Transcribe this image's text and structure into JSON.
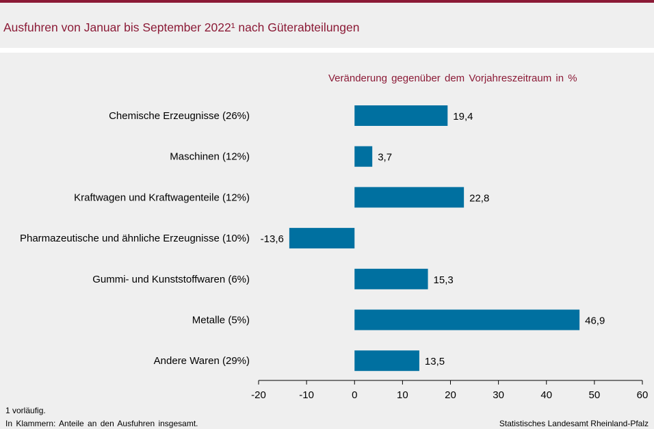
{
  "header": {
    "title": "Ausfuhren von Januar bis September 2022¹ nach Güterabteilungen"
  },
  "colors": {
    "accent": "#8b1a36",
    "bar": "#0070a0",
    "background": "#efefef"
  },
  "chart_data": {
    "type": "bar",
    "orientation": "horizontal",
    "subtitle": "Veränderung gegenüber dem Vorjahreszeitraum in %",
    "categories": [
      "Chemische Erzeugnisse (26%)",
      "Maschinen (12%)",
      "Kraftwagen und Kraftwagenteile (12%)",
      "Pharmazeutische und ähnliche Erzeugnisse (10%)",
      "Gummi- und Kunststoffwaren (6%)",
      "Metalle (5%)",
      "Andere Waren (29%)"
    ],
    "values": [
      19.4,
      3.7,
      22.8,
      -13.6,
      15.3,
      46.9,
      13.5
    ],
    "value_labels": [
      "19,4",
      "3,7",
      "22,8",
      "-13,6",
      "15,3",
      "46,9",
      "13,5"
    ],
    "xlim": [
      -20,
      60
    ],
    "ticks": [
      -20,
      -10,
      0,
      10,
      20,
      30,
      40,
      50,
      60
    ],
    "tick_labels": [
      "-20",
      "-10",
      "0",
      "10",
      "20",
      "30",
      "40",
      "50",
      "60"
    ],
    "grid": false,
    "legend": "none"
  },
  "footer": {
    "note1": "1 vorläufig.",
    "note2": "In Klammern: Anteile an den Ausfuhren insgesamt.",
    "source": "Statistisches Landesamt Rheinland-Pfalz"
  }
}
